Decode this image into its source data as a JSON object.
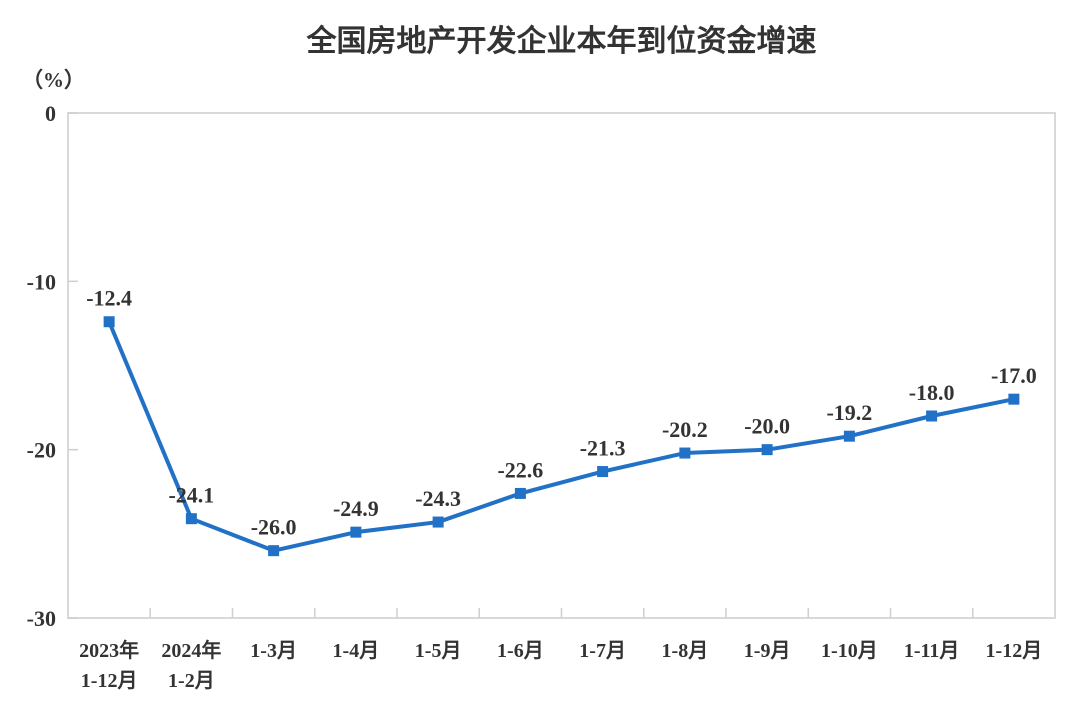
{
  "page": {
    "background": "#ffffff"
  },
  "chart_data": {
    "type": "line",
    "title": "全国房地产开发企业本年到位资金增速",
    "y_unit_label": "（%）",
    "categories": [
      [
        "2023年",
        "1-12月"
      ],
      [
        "2024年",
        "1-2月"
      ],
      [
        "1-3月"
      ],
      [
        "1-4月"
      ],
      [
        "1-5月"
      ],
      [
        "1-6月"
      ],
      [
        "1-7月"
      ],
      [
        "1-8月"
      ],
      [
        "1-9月"
      ],
      [
        "1-10月"
      ],
      [
        "1-11月"
      ],
      [
        "1-12月"
      ]
    ],
    "series": [
      {
        "name": "本年到位资金增速",
        "values": [
          -12.4,
          -24.1,
          -26.0,
          -24.9,
          -24.3,
          -22.6,
          -21.3,
          -20.2,
          -20.0,
          -19.2,
          -18.0,
          -17.0
        ],
        "point_labels": [
          "-12.4",
          "-24.1",
          "-26.0",
          "-24.9",
          "-24.3",
          "-22.6",
          "-21.3",
          "-20.2",
          "-20.0",
          "-19.2",
          "-18.0",
          "-17.0"
        ]
      }
    ],
    "xlabel": "",
    "ylabel": "",
    "ylim": [
      -30,
      0
    ],
    "yticks": {
      "values": [
        0,
        -10,
        -20,
        -30
      ],
      "labels": [
        "0",
        "-10",
        "-20",
        "-30"
      ]
    },
    "grid": false,
    "legend_position": "none",
    "marker_shape": "square",
    "colors": {
      "line": "#2171C7",
      "marker": "#2171C7",
      "text": "#333333",
      "title": "#333333",
      "axis_border": "#D9D9D9",
      "tick": "#CFCFCF",
      "background": "#FFFFFF"
    }
  }
}
